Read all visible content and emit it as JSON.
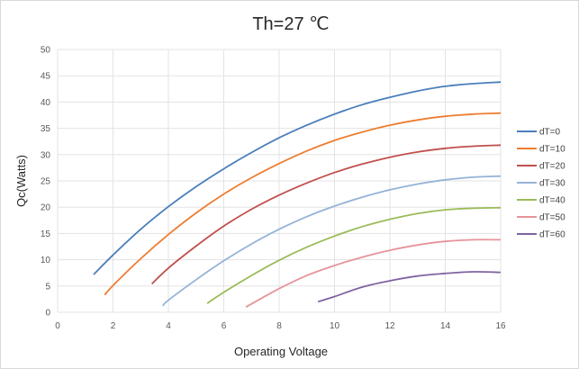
{
  "chart_data": {
    "type": "line",
    "title": "Th=27 ℃",
    "xlabel": "Operating Voltage",
    "ylabel": "Qc(Watts)",
    "xlim": [
      0,
      16
    ],
    "ylim": [
      0,
      50
    ],
    "x_ticks": [
      0,
      2,
      4,
      6,
      8,
      10,
      12,
      14,
      16
    ],
    "y_ticks": [
      0,
      5,
      10,
      15,
      20,
      25,
      30,
      35,
      40,
      45,
      50
    ],
    "grid": true,
    "legend_position": "right",
    "series": [
      {
        "name": "dT=0",
        "color": "#4a7ebb",
        "x": [
          1.3,
          2,
          3,
          4,
          5,
          6,
          7,
          8,
          9,
          10,
          11,
          12,
          13,
          14,
          15,
          16
        ],
        "y": [
          7.2,
          10.9,
          15.8,
          20.1,
          23.9,
          27.3,
          30.4,
          33.2,
          35.6,
          37.7,
          39.5,
          40.9,
          42.1,
          43.0,
          43.5,
          43.8
        ]
      },
      {
        "name": "dT=10",
        "color": "#ed7d31",
        "x": [
          1.7,
          2,
          3,
          4,
          5,
          6,
          7,
          8,
          9,
          10,
          11,
          12,
          13,
          14,
          15,
          16
        ],
        "y": [
          3.3,
          5.1,
          10.2,
          14.8,
          18.9,
          22.5,
          25.6,
          28.3,
          30.7,
          32.7,
          34.3,
          35.6,
          36.6,
          37.3,
          37.7,
          37.9
        ]
      },
      {
        "name": "dT=20",
        "color": "#c0504d",
        "x": [
          3.4,
          4,
          5,
          6,
          7,
          8,
          9,
          10,
          11,
          12,
          13,
          14,
          15,
          16
        ],
        "y": [
          5.4,
          8.4,
          12.6,
          16.4,
          19.6,
          22.3,
          24.6,
          26.6,
          28.2,
          29.5,
          30.5,
          31.2,
          31.6,
          31.8
        ]
      },
      {
        "name": "dT=30",
        "color": "#95b3d7",
        "x": [
          3.8,
          4,
          5,
          6,
          7,
          8,
          9,
          10,
          11,
          12,
          13,
          14,
          15,
          16
        ],
        "y": [
          1.2,
          2.3,
          6.2,
          9.8,
          13.0,
          15.8,
          18.2,
          20.2,
          21.9,
          23.3,
          24.4,
          25.2,
          25.7,
          25.9
        ]
      },
      {
        "name": "dT=40",
        "color": "#9bbb59",
        "x": [
          5.4,
          6,
          7,
          8,
          9,
          10,
          11,
          12,
          13,
          14,
          15,
          16
        ],
        "y": [
          1.7,
          3.8,
          7.0,
          9.9,
          12.4,
          14.5,
          16.3,
          17.7,
          18.8,
          19.5,
          19.8,
          19.9
        ]
      },
      {
        "name": "dT=50",
        "color": "#e6949a",
        "x": [
          6.8,
          7,
          8,
          9,
          10,
          11,
          12,
          13,
          14,
          15,
          16
        ],
        "y": [
          1.0,
          1.6,
          4.5,
          7.0,
          8.9,
          10.5,
          11.8,
          12.8,
          13.5,
          13.8,
          13.8
        ]
      },
      {
        "name": "dT=60",
        "color": "#8064a2",
        "x": [
          9.4,
          10,
          11,
          12,
          13,
          14,
          15,
          16
        ],
        "y": [
          2.0,
          3.0,
          4.8,
          6.0,
          6.9,
          7.4,
          7.7,
          7.6
        ]
      }
    ]
  }
}
